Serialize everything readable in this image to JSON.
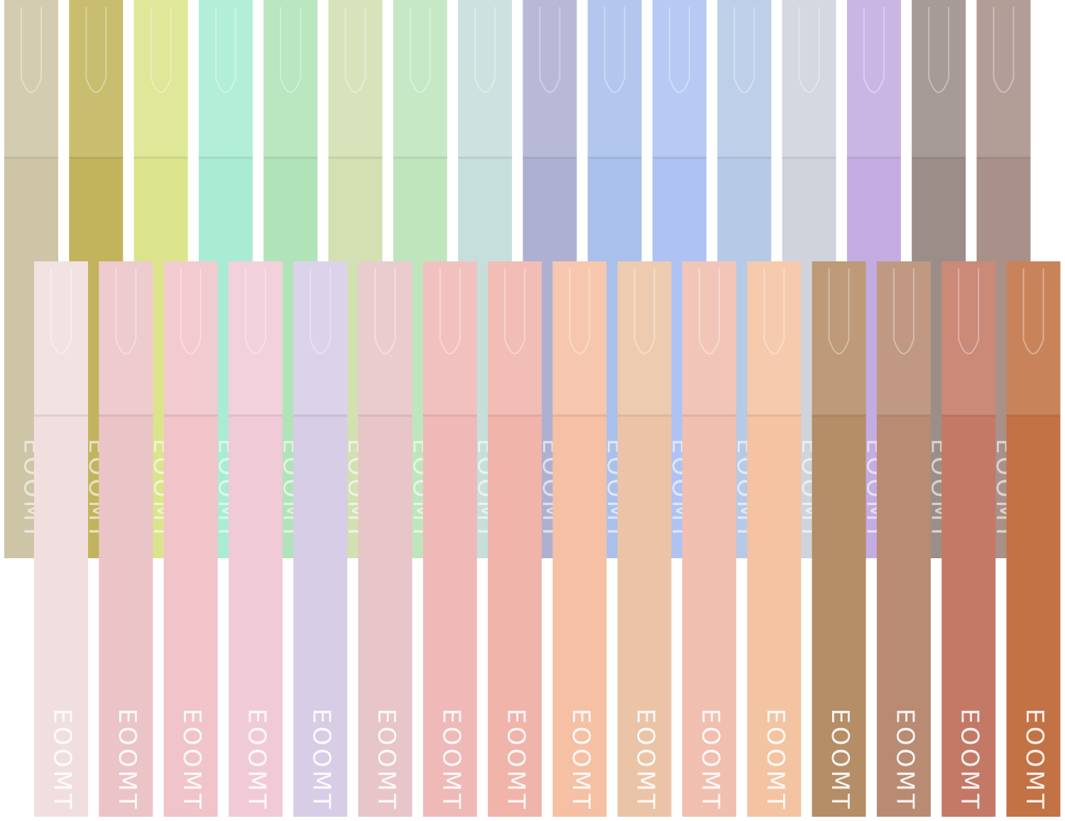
{
  "brand": "EOOMT"
}
